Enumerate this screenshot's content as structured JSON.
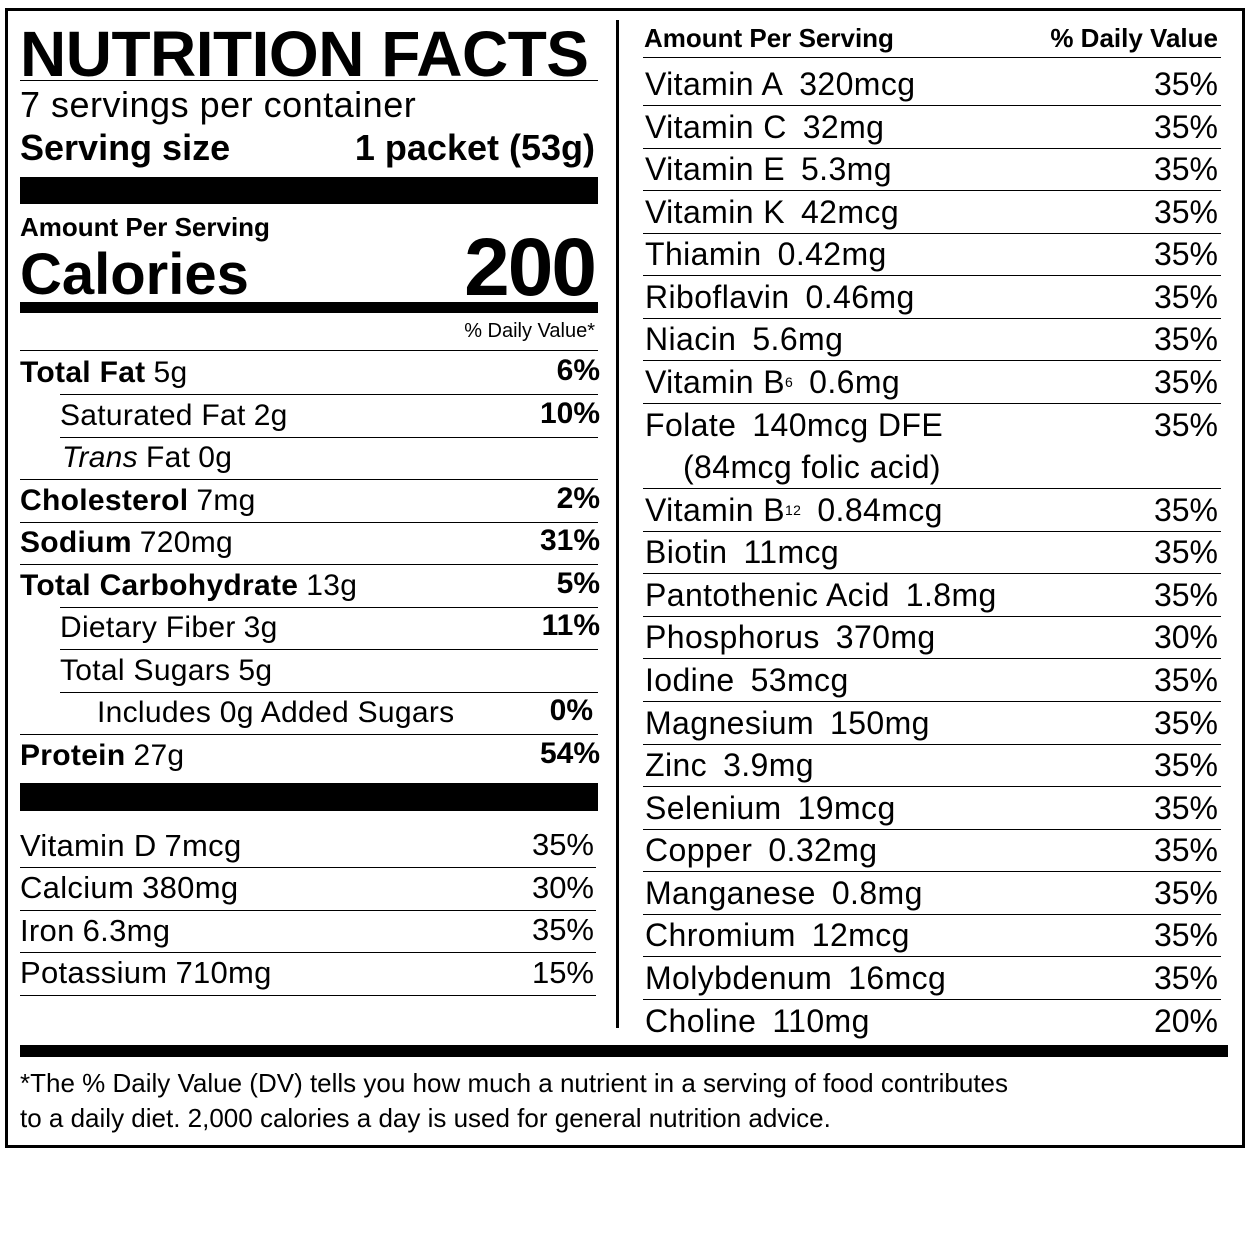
{
  "title": "NUTRITION FACTS",
  "servings": "7 servings per container",
  "serving_size_label": "Serving size",
  "serving_size": "1 packet (53g)",
  "amount_per_serving": "Amount Per Serving",
  "calories_label": "Calories",
  "calories": "200",
  "dv_header": "% Daily Value*",
  "nutrients": [
    {
      "name": "Total Fat",
      "amount": "5g",
      "dv": "6%"
    },
    {
      "name": "Saturated Fat",
      "amount": "2g",
      "dv": "10%"
    },
    {
      "prefix": "Trans",
      "name": "Fat",
      "amount": "0g"
    },
    {
      "name": "Cholesterol",
      "amount": "7mg",
      "dv": "2%"
    },
    {
      "name": "Sodium",
      "amount": "720mg",
      "dv": "31%"
    },
    {
      "name": "Total Carbohydrate",
      "amount": "13g",
      "dv": "5%"
    },
    {
      "name": "Dietary Fiber",
      "amount": "3g",
      "dv": "11%"
    },
    {
      "name": "Total Sugars",
      "amount": "5g"
    },
    {
      "name": "Includes 0g Added Sugars",
      "dv": "0%"
    },
    {
      "name": "Protein",
      "amount": "27g",
      "dv": "54%"
    }
  ],
  "vitamins": [
    {
      "name": "Vitamin D",
      "amount": "7mcg",
      "dv": "35%"
    },
    {
      "name": "Calcium",
      "amount": "380mg",
      "dv": "30%"
    },
    {
      "name": "Iron",
      "amount": "6.3mg",
      "dv": "35%"
    },
    {
      "name": "Potassium",
      "amount": "710mg",
      "dv": "15%"
    }
  ],
  "right_header": {
    "left": "Amount Per Serving",
    "right": "% Daily Value"
  },
  "right_nutrients": [
    {
      "name": "Vitamin A",
      "amount": "320mcg",
      "dv": "35%"
    },
    {
      "name": "Vitamin C",
      "amount": "32mg",
      "dv": "35%"
    },
    {
      "name": "Vitamin E",
      "amount": "5.3mg",
      "dv": "35%"
    },
    {
      "name": "Vitamin K",
      "amount": "42mcg",
      "dv": "35%"
    },
    {
      "name": "Thiamin",
      "amount": "0.42mg",
      "dv": "35%"
    },
    {
      "name": "Riboflavin",
      "amount": "0.46mg",
      "dv": "35%"
    },
    {
      "name": "Niacin",
      "amount": "5.6mg",
      "dv": "35%"
    },
    {
      "name": "Vitamin B",
      "sub": "6",
      "amount": "0.6mg",
      "dv": "35%"
    },
    {
      "name": "Folate",
      "amount": "140mcg DFE",
      "note": "(84mcg folic acid)",
      "dv": "35%"
    },
    {
      "name": "Vitamin B",
      "sub": "12",
      "amount": "0.84mcg",
      "dv": "35%"
    },
    {
      "name": "Biotin",
      "amount": "11mcg",
      "dv": "35%"
    },
    {
      "name": "Pantothenic Acid",
      "amount": "1.8mg",
      "dv": "35%"
    },
    {
      "name": "Phosphorus",
      "amount": "370mg",
      "dv": "30%"
    },
    {
      "name": "Iodine",
      "amount": "53mcg",
      "dv": "35%"
    },
    {
      "name": "Magnesium",
      "amount": "150mg",
      "dv": "35%"
    },
    {
      "name": "Zinc",
      "amount": "3.9mg",
      "dv": "35%"
    },
    {
      "name": "Selenium",
      "amount": "19mcg",
      "dv": "35%"
    },
    {
      "name": "Copper",
      "amount": "0.32mg",
      "dv": "35%"
    },
    {
      "name": "Manganese",
      "amount": "0.8mg",
      "dv": "35%"
    },
    {
      "name": "Chromium",
      "amount": "12mcg",
      "dv": "35%"
    },
    {
      "name": "Molybdenum",
      "amount": "16mcg",
      "dv": "35%"
    },
    {
      "name": "Choline",
      "amount": "110mg",
      "dv": "20%"
    }
  ],
  "footnote": [
    "*The % Daily Value (DV) tells you how much a nutrient in a serving of food contributes",
    "to a daily diet. 2,000 calories a day is used for general nutrition advice."
  ]
}
